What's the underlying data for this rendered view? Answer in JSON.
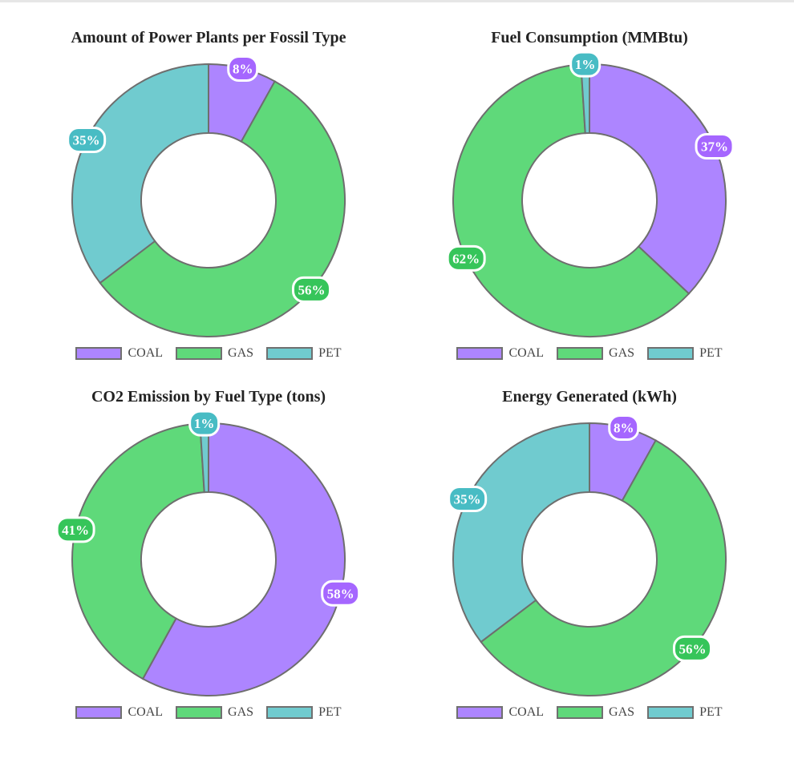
{
  "chart_data": [
    {
      "type": "pie",
      "title": "Amount of Power Plants per Fossil Type",
      "categories": [
        "COAL",
        "GAS",
        "PET"
      ],
      "values": [
        8,
        56,
        35
      ],
      "value_labels": [
        "8%",
        "56%",
        "35%"
      ],
      "colors": [
        "#ad85ff",
        "#5fd97a",
        "#70cbcf"
      ],
      "label_colors": [
        "#a566ff",
        "#36c55a",
        "#48bcc4"
      ],
      "legend": "bottom"
    },
    {
      "type": "pie",
      "title": "Fuel Consumption (MMBtu)",
      "categories": [
        "COAL",
        "GAS",
        "PET"
      ],
      "values": [
        37,
        62,
        1
      ],
      "value_labels": [
        "37%",
        "62%",
        "1%"
      ],
      "colors": [
        "#ad85ff",
        "#5fd97a",
        "#70cbcf"
      ],
      "label_colors": [
        "#a566ff",
        "#36c55a",
        "#48bcc4"
      ],
      "legend": "bottom"
    },
    {
      "type": "pie",
      "title": "CO2 Emission by Fuel Type (tons)",
      "categories": [
        "COAL",
        "GAS",
        "PET"
      ],
      "values": [
        58,
        41,
        1
      ],
      "value_labels": [
        "58%",
        "41%",
        "1%"
      ],
      "colors": [
        "#ad85ff",
        "#5fd97a",
        "#70cbcf"
      ],
      "label_colors": [
        "#a566ff",
        "#36c55a",
        "#48bcc4"
      ],
      "legend": "bottom"
    },
    {
      "type": "pie",
      "title": "Energy Generated (kWh)",
      "categories": [
        "COAL",
        "GAS",
        "PET"
      ],
      "values": [
        8,
        56,
        35
      ],
      "value_labels": [
        "8%",
        "56%",
        "35%"
      ],
      "colors": [
        "#ad85ff",
        "#5fd97a",
        "#70cbcf"
      ],
      "label_colors": [
        "#a566ff",
        "#36c55a",
        "#48bcc4"
      ],
      "legend": "bottom"
    }
  ]
}
